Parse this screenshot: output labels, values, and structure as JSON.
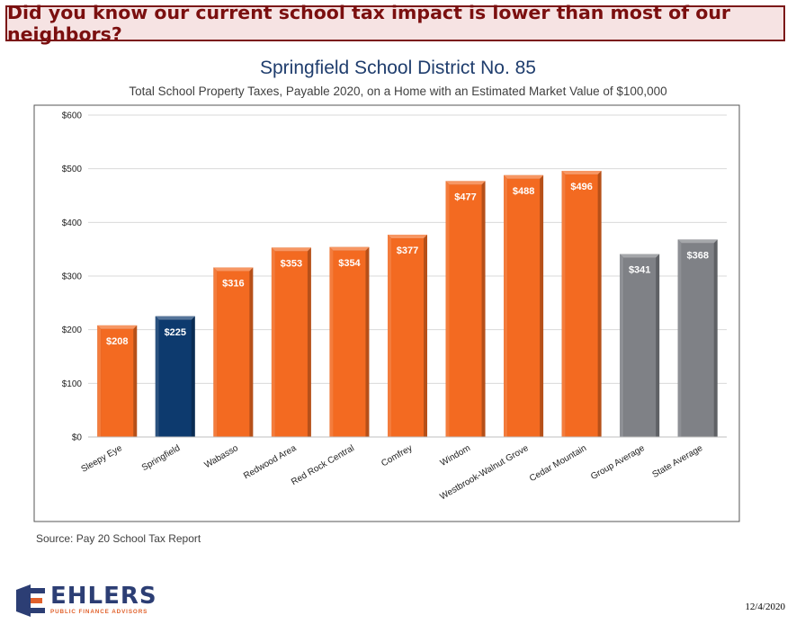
{
  "banner": {
    "text": "Did you know our current school tax impact is lower than most of our neighbors?"
  },
  "source": "Source: Pay 20 School Tax Report",
  "logo": {
    "name": "EHLERS",
    "tagline": "PUBLIC FINANCE ADVISORS"
  },
  "date": "12/4/2020",
  "colors": {
    "orange": "#f36a21",
    "navy": "#0d3a6e",
    "gray": "#7f8186",
    "banner_bg": "#f6e3e3",
    "banner_text": "#7b0f0f",
    "title": "#1f3d6d"
  },
  "chart_data": {
    "type": "bar",
    "title": "Springfield School District No. 85",
    "subtitle": "Total School Property Taxes, Payable 2020, on a Home with an Estimated Market Value of $100,000",
    "categories": [
      "Sleepy Eye",
      "Springfield",
      "Wabasso",
      "Redwood Area",
      "Red Rock Central",
      "Comfrey",
      "Windom",
      "Westbrook-Walnut Grove",
      "Cedar Mountain",
      "Group Average",
      "State Average"
    ],
    "values": [
      208,
      225,
      316,
      353,
      354,
      377,
      477,
      488,
      496,
      341,
      368
    ],
    "value_labels": [
      "$208",
      "$225",
      "$316",
      "$353",
      "$354",
      "$377",
      "$477",
      "$488",
      "$496",
      "$341",
      "$368"
    ],
    "bar_colors": [
      "orange",
      "navy",
      "orange",
      "orange",
      "orange",
      "orange",
      "orange",
      "orange",
      "orange",
      "gray",
      "gray"
    ],
    "yticks": [
      "$0",
      "$100",
      "$200",
      "$300",
      "$400",
      "$500",
      "$600"
    ],
    "ylim": [
      0,
      600
    ],
    "grid": true,
    "legend": "none"
  }
}
